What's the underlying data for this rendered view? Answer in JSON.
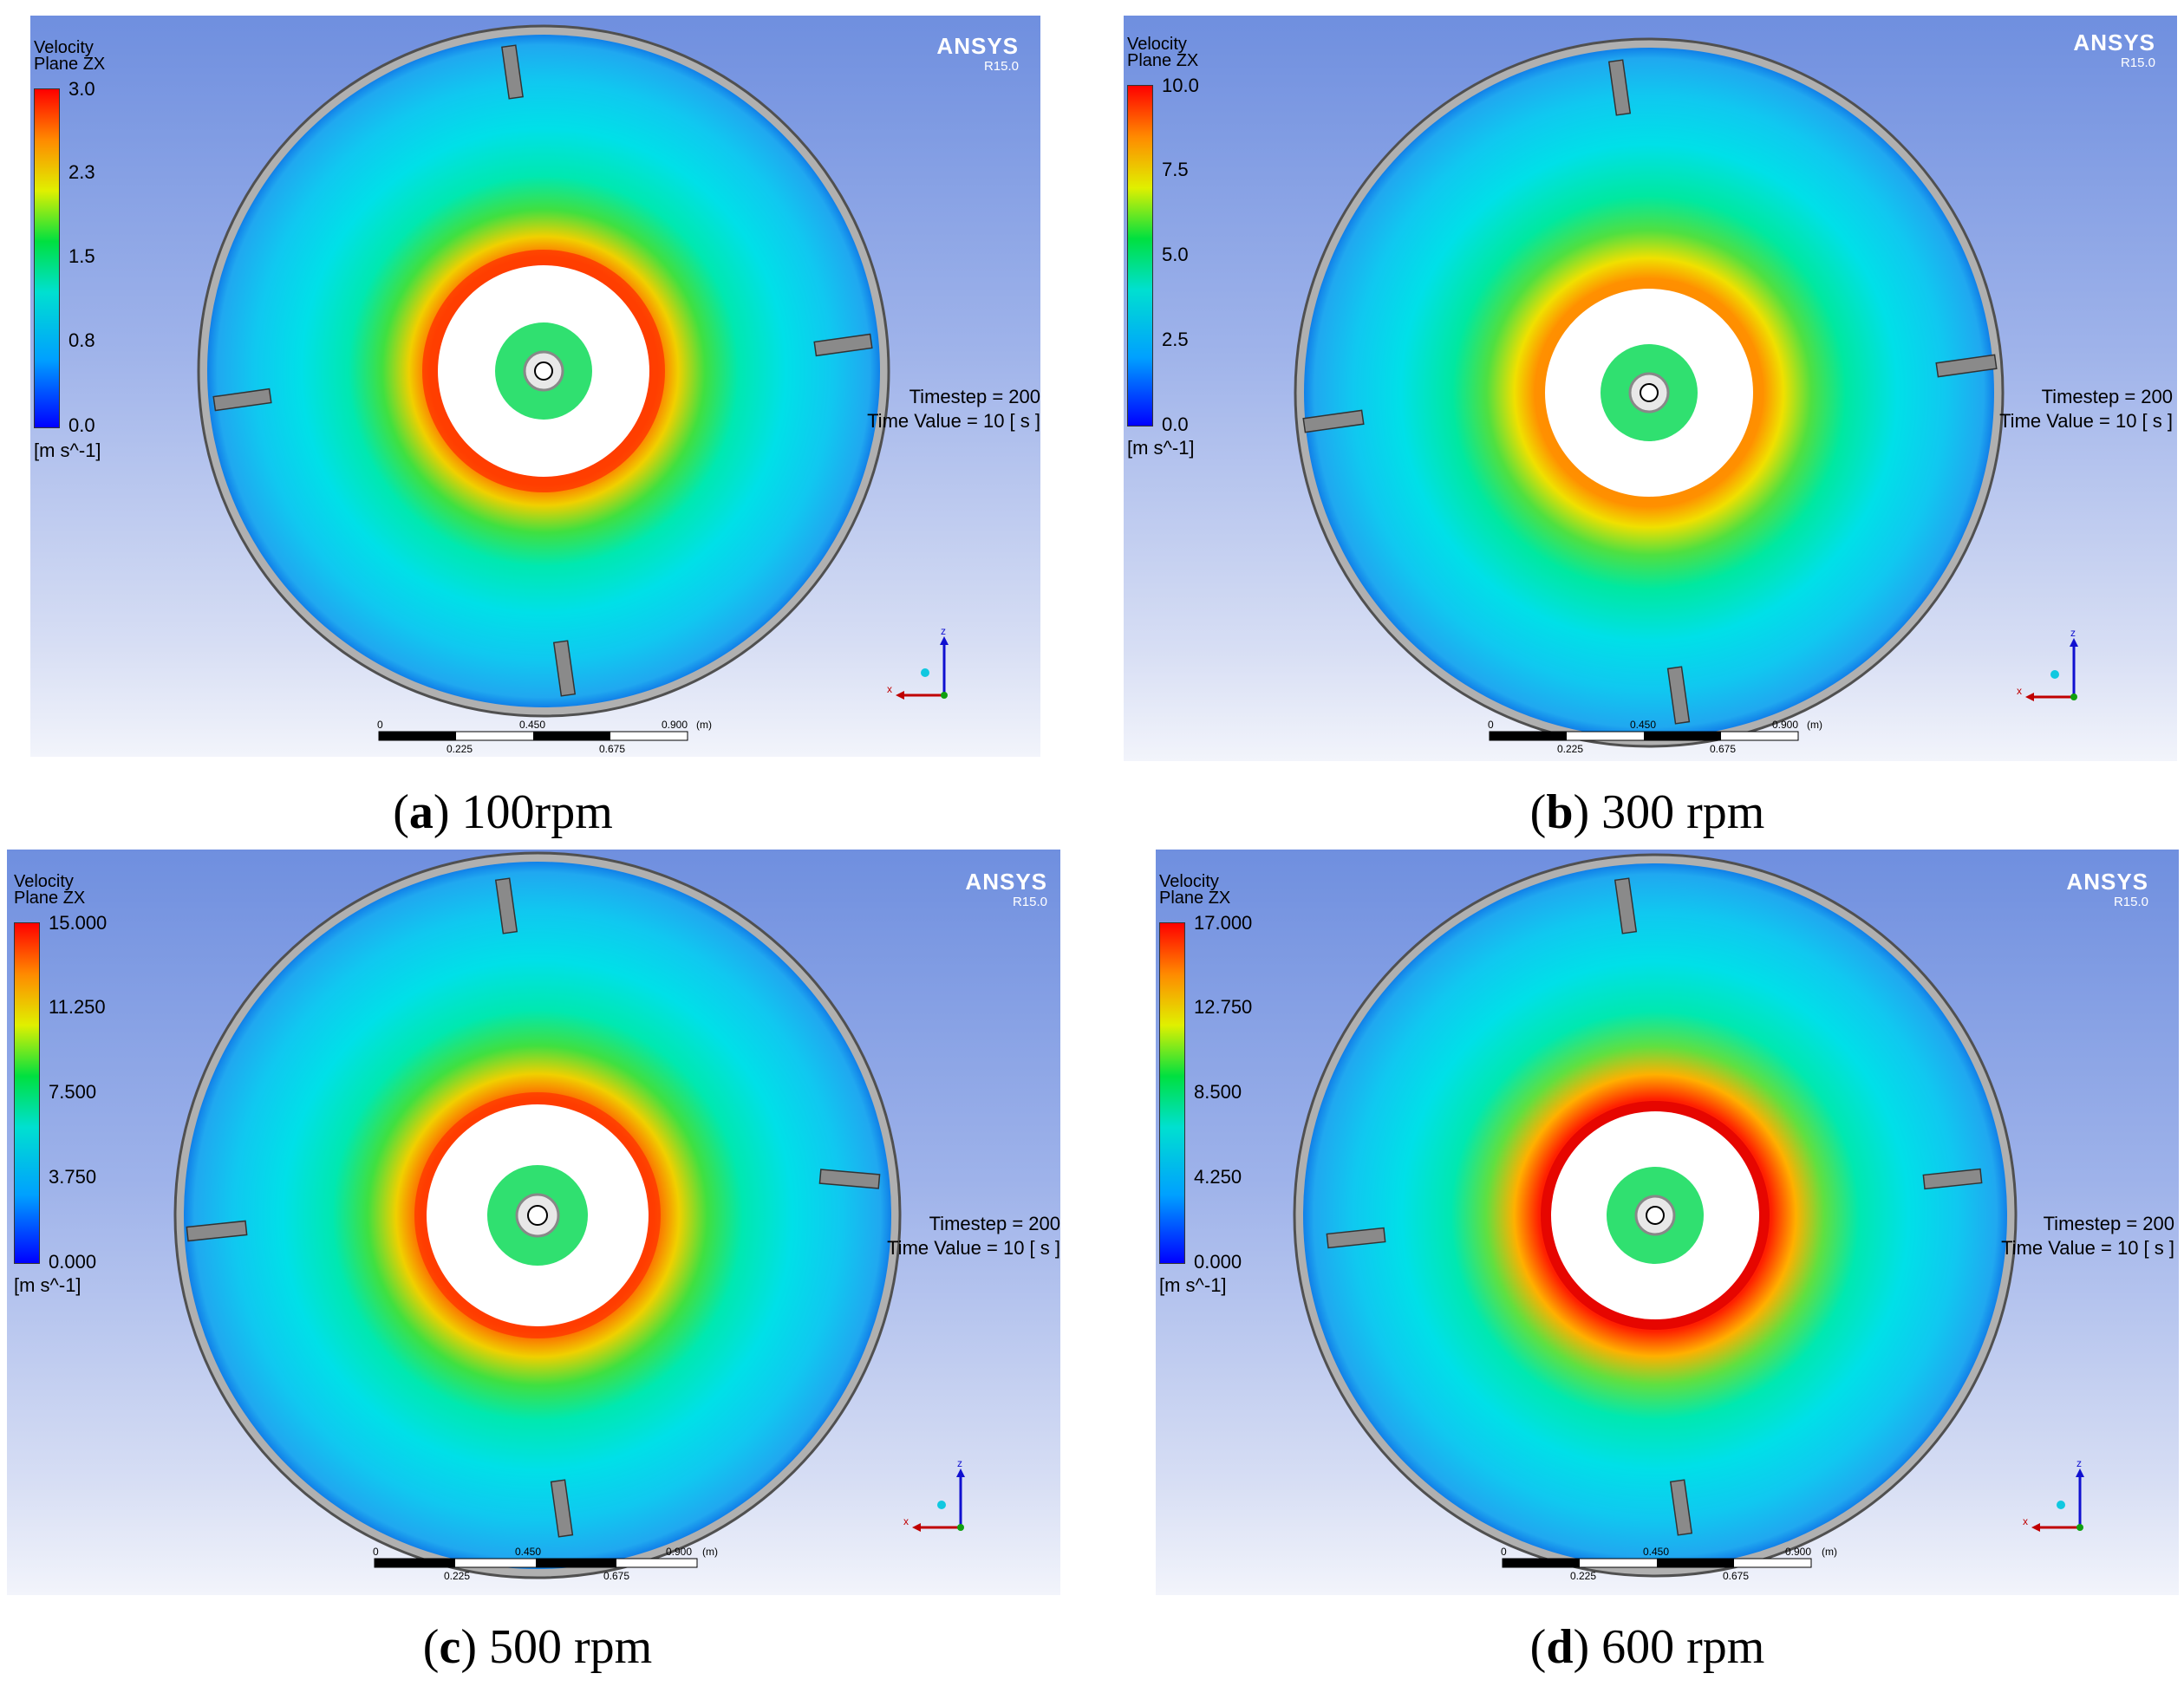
{
  "panels": [
    {
      "legend": {
        "title1": "Velocity",
        "title2": "Plane ZX",
        "ticks": [
          "3.0",
          "2.3",
          "1.5",
          "0.8",
          "0.0"
        ],
        "unit": "[m s^-1]"
      },
      "brand": "ANSYS",
      "version": "R15.0",
      "timestep": "Timestep = 200",
      "time_value": "Time Value = 10 [ s ]",
      "scale": {
        "top": [
          "0",
          "0.450",
          "0.900",
          "(m)"
        ],
        "bottom": [
          "0.225",
          "0.675"
        ]
      },
      "axes": {
        "z": "z",
        "x": "x"
      },
      "caption": {
        "letter": "a",
        "text": " 100rpm"
      }
    },
    {
      "legend": {
        "title1": "Velocity",
        "title2": "Plane ZX",
        "ticks": [
          "10.0",
          "7.5",
          "5.0",
          "2.5",
          "0.0"
        ],
        "unit": "[m s^-1]"
      },
      "brand": "ANSYS",
      "version": "R15.0",
      "timestep": "Timestep = 200",
      "time_value": "Time Value = 10 [ s ]",
      "scale": {
        "top": [
          "0",
          "0.450",
          "0.900",
          "(m)"
        ],
        "bottom": [
          "0.225",
          "0.675"
        ]
      },
      "axes": {
        "z": "z",
        "x": "x"
      },
      "caption": {
        "letter": "b",
        "text": " 300 rpm"
      }
    },
    {
      "legend": {
        "title1": "Velocity",
        "title2": "Plane ZX",
        "ticks": [
          "15.000",
          "11.250",
          "7.500",
          "3.750",
          "0.000"
        ],
        "unit": "[m s^-1]"
      },
      "brand": "ANSYS",
      "version": "R15.0",
      "timestep": "Timestep = 200",
      "time_value": "Time Value = 10 [ s ]",
      "scale": {
        "top": [
          "0",
          "0.450",
          "0.900",
          "(m)"
        ],
        "bottom": [
          "0.225",
          "0.675"
        ]
      },
      "axes": {
        "z": "z",
        "x": "x"
      },
      "caption": {
        "letter": "c",
        "text": " 500 rpm"
      }
    },
    {
      "legend": {
        "title1": "Velocity",
        "title2": "Plane ZX",
        "ticks": [
          "17.000",
          "12.750",
          "8.500",
          "4.250",
          "0.000"
        ],
        "unit": "[m s^-1]"
      },
      "brand": "ANSYS",
      "version": "R15.0",
      "timestep": "Timestep = 200",
      "time_value": "Time Value = 10 [ s ]",
      "scale": {
        "top": [
          "0",
          "0.450",
          "0.900",
          "(m)"
        ],
        "bottom": [
          "0.225",
          "0.675"
        ]
      },
      "axes": {
        "z": "z",
        "x": "x"
      },
      "caption": {
        "letter": "d",
        "text": " 600 rpm"
      }
    }
  ],
  "colors": {
    "colormap": [
      "#0000ff",
      "#00a0ff",
      "#00e0d0",
      "#00e040",
      "#e0f000",
      "#ff8a00",
      "#ff0000"
    ],
    "hot_ring": "#ff3000"
  }
}
